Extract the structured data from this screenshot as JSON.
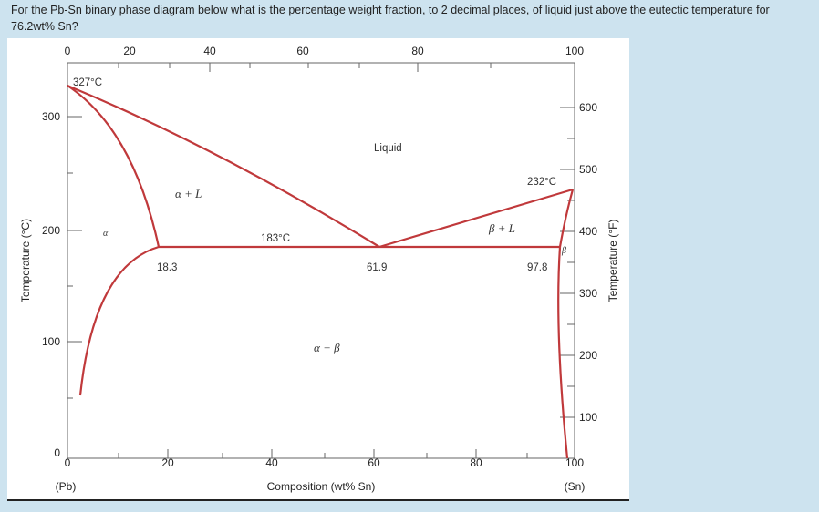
{
  "question": "For the Pb-Sn binary phase diagram below what is the percentage weight fraction, to 2 decimal places, of liquid just above the eutectic temperature for 76.2wt% Sn?",
  "diagram": {
    "top_axis_ticks": [
      "0",
      "20",
      "40",
      "60",
      "80",
      "100"
    ],
    "bottom_axis_ticks": [
      "0",
      "20",
      "40",
      "60",
      "80",
      "100"
    ],
    "bottom_axis_title": "Composition (wt% Sn)",
    "bottom_left_end": "(Pb)",
    "bottom_right_end": "(Sn)",
    "left_axis_title": "Temperature (°C)",
    "left_axis_ticks": [
      "300",
      "200",
      "100",
      "0"
    ],
    "right_axis_title": "Temperature (°F)",
    "right_axis_ticks": [
      "600",
      "500",
      "400",
      "300",
      "200",
      "100"
    ],
    "labels": {
      "pb_melting": "327°C",
      "sn_melting": "232°C",
      "eutectic_temp": "183°C",
      "liquid": "Liquid",
      "alpha_l": "α + L",
      "beta_l": "β + L",
      "alpha": "α",
      "beta": "β",
      "alpha_beta": "α + β",
      "comp_alpha": "18.3",
      "comp_eutectic": "61.9",
      "comp_beta": "97.8"
    },
    "line_color": "#c0393b"
  }
}
